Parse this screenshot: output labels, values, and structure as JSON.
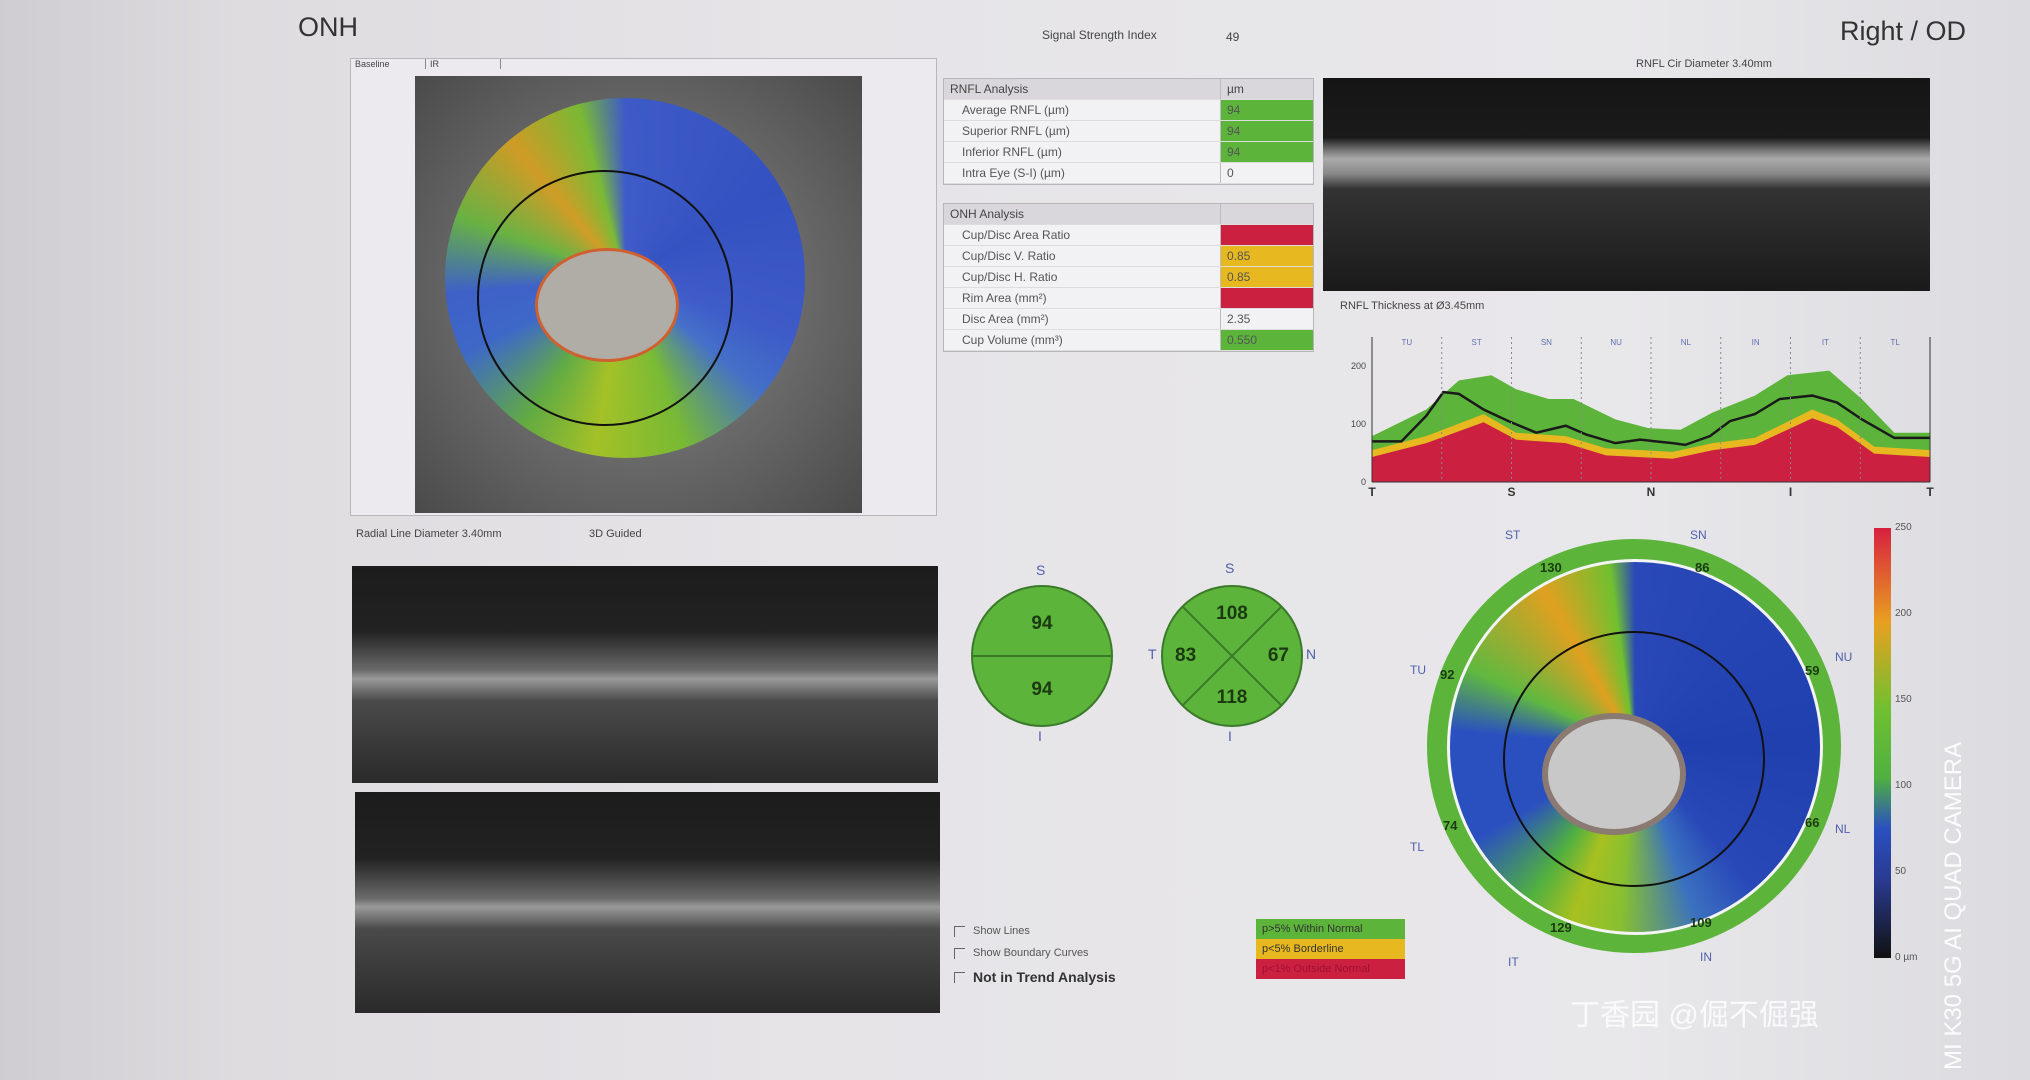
{
  "header": {
    "section_title": "ONH",
    "eye": "Right / OD",
    "signal_label": "Signal Strength Index",
    "signal_value": "49"
  },
  "fundus": {
    "tabs": [
      "Baseline",
      "IR"
    ],
    "scan_label": "Radial Line Diameter 3.40mm",
    "mode_label": "3D Guided"
  },
  "rnfl_table": {
    "title": "RNFL Analysis",
    "unit": "µm",
    "rows": [
      {
        "label": "Average RNFL (µm)",
        "value": "94",
        "status": "normal"
      },
      {
        "label": "Superior RNFL (µm)",
        "value": "94",
        "status": "normal"
      },
      {
        "label": "Inferior RNFL (µm)",
        "value": "94",
        "status": "normal"
      },
      {
        "label": "Intra Eye (S-I) (µm)",
        "value": "0",
        "status": "none"
      }
    ]
  },
  "onh_table": {
    "title": "ONH Analysis",
    "rows": [
      {
        "label": "Cup/Disc Area Ratio",
        "value": "",
        "status": "outside"
      },
      {
        "label": "Cup/Disc V. Ratio",
        "value": "0.85",
        "status": "borderline"
      },
      {
        "label": "Cup/Disc H. Ratio",
        "value": "0.85",
        "status": "borderline"
      },
      {
        "label": "Rim Area (mm²)",
        "value": "",
        "status": "outside"
      },
      {
        "label": "Disc Area (mm²)",
        "value": "2.35",
        "status": "none"
      },
      {
        "label": "Cup Volume (mm³)",
        "value": "0.550",
        "status": "normal"
      }
    ]
  },
  "status_colors": {
    "normal": "#5cb43a",
    "borderline": "#e8b820",
    "outside": "#cc2040",
    "none": "#f2f1f3"
  },
  "cir_scan_label": "RNFL Cir Diameter 3.40mm",
  "chart_data": {
    "type": "area",
    "title": "RNFL Thickness at Ø3.45mm",
    "xlabel": "",
    "ylabel": "",
    "x_ticks": [
      {
        "at": 0,
        "label": "T"
      },
      {
        "at": 90,
        "label": "S"
      },
      {
        "at": 180,
        "label": "N"
      },
      {
        "at": 270,
        "label": "I"
      },
      {
        "at": 360,
        "label": "T"
      }
    ],
    "sector_labels": [
      "TU",
      "ST",
      "SN",
      "NU",
      "NL",
      "IN",
      "IT",
      "TL"
    ],
    "xlim": [
      0,
      360
    ],
    "ylim": [
      0,
      250
    ],
    "y_ticks": [
      0,
      100,
      200
    ],
    "bands": [
      {
        "color": "#5cb43a",
        "x": [
          0,
          35,
          56,
          77,
          93,
          114,
          130,
          157,
          178,
          199,
          220,
          247,
          268,
          295,
          316,
          337,
          360
        ],
        "y": [
          79,
          125,
          175,
          184,
          160,
          143,
          143,
          108,
          93,
          90,
          120,
          149,
          184,
          192,
          143,
          85,
          85
        ]
      },
      {
        "color": "#e8b820",
        "x": [
          0,
          35,
          72,
          93,
          125,
          151,
          194,
          220,
          247,
          284,
          300,
          324,
          360
        ],
        "y": [
          55,
          79,
          117,
          85,
          79,
          58,
          52,
          67,
          76,
          125,
          108,
          61,
          55
        ]
      },
      {
        "color": "#cc2040",
        "x": [
          0,
          35,
          72,
          93,
          125,
          151,
          194,
          220,
          247,
          284,
          300,
          324,
          360
        ],
        "y": [
          43,
          67,
          103,
          73,
          67,
          46,
          40,
          55,
          64,
          110,
          95,
          49,
          43
        ]
      }
    ],
    "series": [
      {
        "color": "#1a1a1a",
        "x": [
          0,
          19,
          35,
          46,
          56,
          72,
          88,
          106,
          125,
          138,
          157,
          173,
          194,
          202,
          218,
          231,
          247,
          263,
          284,
          300,
          316,
          337,
          360
        ],
        "y": [
          70,
          70,
          114,
          155,
          152,
          125,
          105,
          85,
          97,
          82,
          67,
          73,
          67,
          64,
          79,
          105,
          117,
          143,
          149,
          137,
          108,
          76,
          76
        ]
      }
    ]
  },
  "hemi": {
    "S_label": "S",
    "I_label": "I",
    "superior": "94",
    "inferior": "94"
  },
  "quadrant": {
    "S_label": "S",
    "I_label": "I",
    "T_label": "T",
    "N_label": "N",
    "superior": "108",
    "temporal": "83",
    "nasal": "67",
    "inferior": "118"
  },
  "clock": {
    "labels": {
      "ST": "ST",
      "SN": "SN",
      "NU": "NU",
      "NL": "NL",
      "IN": "IN",
      "IT": "IT",
      "TL": "TL",
      "TU": "TU"
    },
    "values": {
      "ST": "130",
      "SN": "86",
      "NU": "59",
      "NL": "66",
      "IN": "109",
      "IT": "129",
      "TL": "74",
      "TU": "92"
    }
  },
  "colorbar": {
    "ticks": [
      "250",
      "200",
      "150",
      "100",
      "50",
      "0 µm"
    ]
  },
  "options": {
    "show_lines": "Show Lines",
    "show_boundary": "Show Boundary Curves",
    "trend": "Not in Trend Analysis"
  },
  "legend": {
    "normal": "p>5% Within Normal",
    "borderline": "p<5% Borderline",
    "outside": "p<1% Outside Normal"
  },
  "watermark": {
    "brand": "丁香园 @倔不倔强",
    "camera": "MI K30 5G AI QUAD CAMERA"
  }
}
